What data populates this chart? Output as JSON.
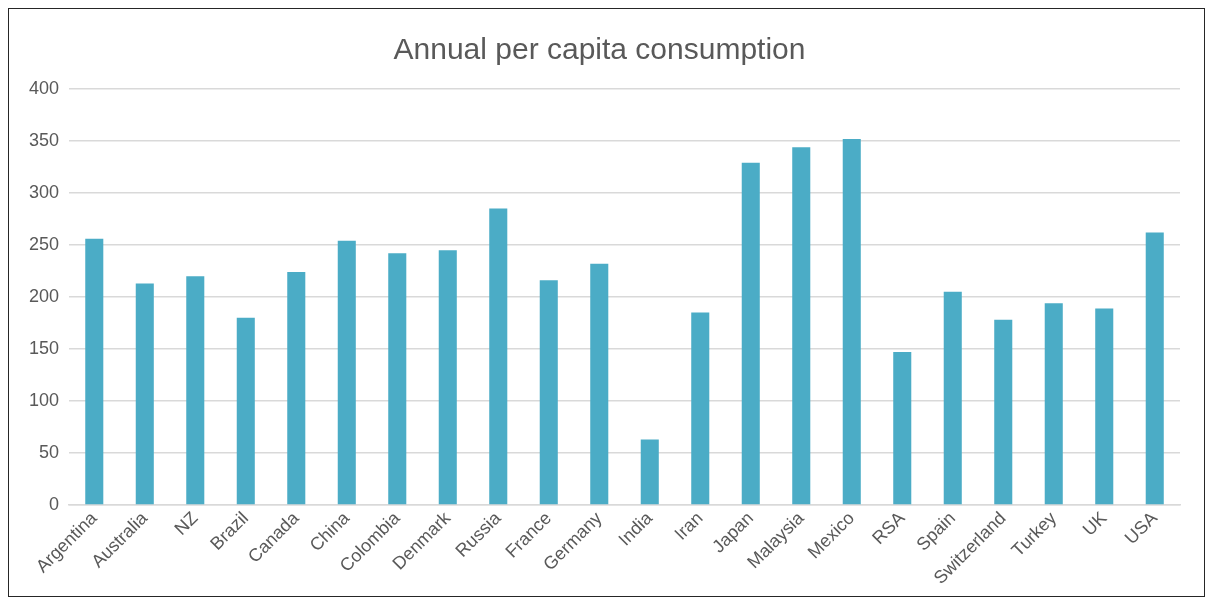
{
  "chart_data": {
    "type": "bar",
    "title": "Annual per capita consumption",
    "categories": [
      "Argentina",
      "Australia",
      "NZ",
      "Brazil",
      "Canada",
      "China",
      "Colombia",
      "Denmark",
      "Russia",
      "France",
      "Germany",
      "India",
      "Iran",
      "Japan",
      "Malaysia",
      "Mexico",
      "RSA",
      "Spain",
      "Switzerland",
      "Turkey",
      "UK",
      "USA"
    ],
    "values": [
      256,
      213,
      220,
      180,
      224,
      254,
      242,
      245,
      285,
      216,
      232,
      63,
      185,
      329,
      344,
      352,
      147,
      205,
      178,
      194,
      189,
      262
    ],
    "color": "#4bacc6",
    "ylim": [
      0,
      400
    ],
    "yticks": [
      0,
      50,
      100,
      150,
      200,
      250,
      300,
      350,
      400
    ],
    "grid": "y",
    "legend": false
  }
}
